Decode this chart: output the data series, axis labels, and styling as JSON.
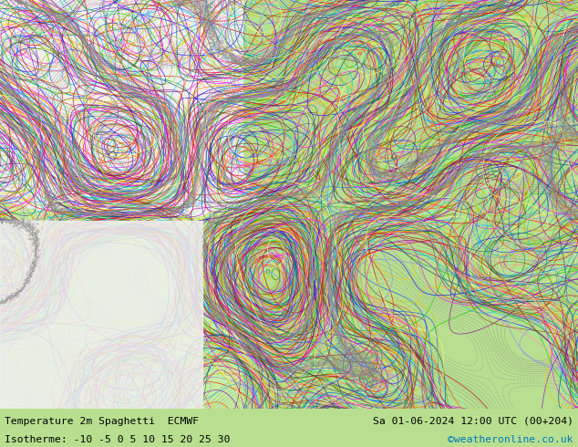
{
  "title_left": "Temperature 2m Spaghetti  ECMWF",
  "title_right": "Sa 01-06-2024 12:00 UTC (00+204)",
  "subtitle": "Isotherme: -10 -5 0 5 10 15 20 25 30",
  "credit": "©weatheronline.co.uk",
  "bg_land_color": "#c8eea0",
  "bg_sea_color": "#f0f0f0",
  "text_color": "#000000",
  "credit_color": "#0077bb",
  "bottom_bar_color": "#b8df90",
  "fig_width": 6.34,
  "fig_height": 4.9,
  "dpi": 100,
  "contour_colors": [
    "#ff00ff",
    "#cc00cc",
    "#8800cc",
    "#0000ff",
    "#0055ff",
    "#00aaff",
    "#00cccc",
    "#00cc00",
    "#88cc00",
    "#cccc00",
    "#ffcc00",
    "#ff8800",
    "#ff4400",
    "#ff0000",
    "#cc0000",
    "#880088",
    "#004488",
    "#008855",
    "#884400",
    "#555555",
    "#ff88cc",
    "#8888ff",
    "#88ffcc",
    "#ffff88",
    "#ff8888"
  ],
  "coast_color": "#888888",
  "seed": 12345,
  "n_members": 51,
  "levels": [
    -10,
    -5,
    0,
    5,
    10,
    15,
    20,
    25,
    30
  ]
}
